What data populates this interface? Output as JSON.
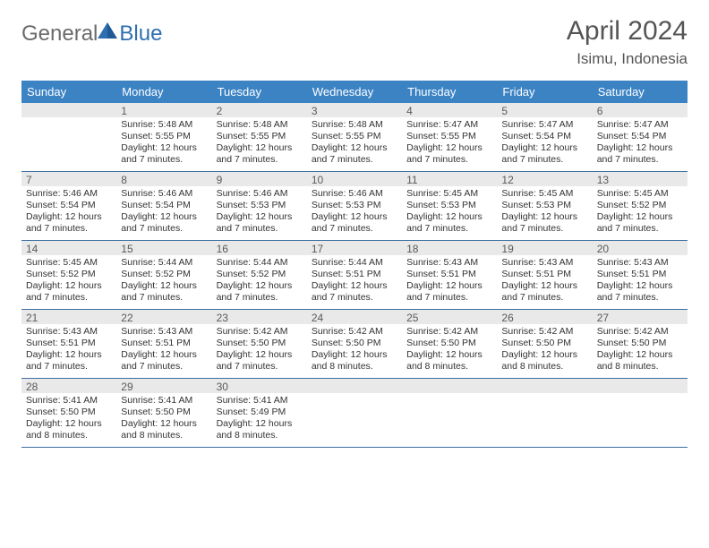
{
  "brand": {
    "part1": "General",
    "part2": "Blue"
  },
  "title": {
    "month": "April 2024",
    "location": "Isimu, Indonesia"
  },
  "colors": {
    "header_bg": "#3c83c4",
    "header_text": "#ffffff",
    "daynum_bg": "#e9e9e9",
    "daynum_text": "#5a5a5a",
    "body_text": "#333333",
    "rule": "#3c6ea0",
    "brand_gray": "#6b6b6b",
    "brand_blue": "#2f6fb0"
  },
  "typography": {
    "title_fontsize": 30,
    "location_fontsize": 17,
    "dow_fontsize": 13,
    "daynum_fontsize": 12,
    "body_fontsize": 10.5
  },
  "dow": [
    "Sunday",
    "Monday",
    "Tuesday",
    "Wednesday",
    "Thursday",
    "Friday",
    "Saturday"
  ],
  "weeks": [
    [
      {
        "n": "",
        "lines": []
      },
      {
        "n": "1",
        "lines": [
          "Sunrise: 5:48 AM",
          "Sunset: 5:55 PM",
          "Daylight: 12 hours and 7 minutes."
        ]
      },
      {
        "n": "2",
        "lines": [
          "Sunrise: 5:48 AM",
          "Sunset: 5:55 PM",
          "Daylight: 12 hours and 7 minutes."
        ]
      },
      {
        "n": "3",
        "lines": [
          "Sunrise: 5:48 AM",
          "Sunset: 5:55 PM",
          "Daylight: 12 hours and 7 minutes."
        ]
      },
      {
        "n": "4",
        "lines": [
          "Sunrise: 5:47 AM",
          "Sunset: 5:55 PM",
          "Daylight: 12 hours and 7 minutes."
        ]
      },
      {
        "n": "5",
        "lines": [
          "Sunrise: 5:47 AM",
          "Sunset: 5:54 PM",
          "Daylight: 12 hours and 7 minutes."
        ]
      },
      {
        "n": "6",
        "lines": [
          "Sunrise: 5:47 AM",
          "Sunset: 5:54 PM",
          "Daylight: 12 hours and 7 minutes."
        ]
      }
    ],
    [
      {
        "n": "7",
        "lines": [
          "Sunrise: 5:46 AM",
          "Sunset: 5:54 PM",
          "Daylight: 12 hours and 7 minutes."
        ]
      },
      {
        "n": "8",
        "lines": [
          "Sunrise: 5:46 AM",
          "Sunset: 5:54 PM",
          "Daylight: 12 hours and 7 minutes."
        ]
      },
      {
        "n": "9",
        "lines": [
          "Sunrise: 5:46 AM",
          "Sunset: 5:53 PM",
          "Daylight: 12 hours and 7 minutes."
        ]
      },
      {
        "n": "10",
        "lines": [
          "Sunrise: 5:46 AM",
          "Sunset: 5:53 PM",
          "Daylight: 12 hours and 7 minutes."
        ]
      },
      {
        "n": "11",
        "lines": [
          "Sunrise: 5:45 AM",
          "Sunset: 5:53 PM",
          "Daylight: 12 hours and 7 minutes."
        ]
      },
      {
        "n": "12",
        "lines": [
          "Sunrise: 5:45 AM",
          "Sunset: 5:53 PM",
          "Daylight: 12 hours and 7 minutes."
        ]
      },
      {
        "n": "13",
        "lines": [
          "Sunrise: 5:45 AM",
          "Sunset: 5:52 PM",
          "Daylight: 12 hours and 7 minutes."
        ]
      }
    ],
    [
      {
        "n": "14",
        "lines": [
          "Sunrise: 5:45 AM",
          "Sunset: 5:52 PM",
          "Daylight: 12 hours and 7 minutes."
        ]
      },
      {
        "n": "15",
        "lines": [
          "Sunrise: 5:44 AM",
          "Sunset: 5:52 PM",
          "Daylight: 12 hours and 7 minutes."
        ]
      },
      {
        "n": "16",
        "lines": [
          "Sunrise: 5:44 AM",
          "Sunset: 5:52 PM",
          "Daylight: 12 hours and 7 minutes."
        ]
      },
      {
        "n": "17",
        "lines": [
          "Sunrise: 5:44 AM",
          "Sunset: 5:51 PM",
          "Daylight: 12 hours and 7 minutes."
        ]
      },
      {
        "n": "18",
        "lines": [
          "Sunrise: 5:43 AM",
          "Sunset: 5:51 PM",
          "Daylight: 12 hours and 7 minutes."
        ]
      },
      {
        "n": "19",
        "lines": [
          "Sunrise: 5:43 AM",
          "Sunset: 5:51 PM",
          "Daylight: 12 hours and 7 minutes."
        ]
      },
      {
        "n": "20",
        "lines": [
          "Sunrise: 5:43 AM",
          "Sunset: 5:51 PM",
          "Daylight: 12 hours and 7 minutes."
        ]
      }
    ],
    [
      {
        "n": "21",
        "lines": [
          "Sunrise: 5:43 AM",
          "Sunset: 5:51 PM",
          "Daylight: 12 hours and 7 minutes."
        ]
      },
      {
        "n": "22",
        "lines": [
          "Sunrise: 5:43 AM",
          "Sunset: 5:51 PM",
          "Daylight: 12 hours and 7 minutes."
        ]
      },
      {
        "n": "23",
        "lines": [
          "Sunrise: 5:42 AM",
          "Sunset: 5:50 PM",
          "Daylight: 12 hours and 7 minutes."
        ]
      },
      {
        "n": "24",
        "lines": [
          "Sunrise: 5:42 AM",
          "Sunset: 5:50 PM",
          "Daylight: 12 hours and 8 minutes."
        ]
      },
      {
        "n": "25",
        "lines": [
          "Sunrise: 5:42 AM",
          "Sunset: 5:50 PM",
          "Daylight: 12 hours and 8 minutes."
        ]
      },
      {
        "n": "26",
        "lines": [
          "Sunrise: 5:42 AM",
          "Sunset: 5:50 PM",
          "Daylight: 12 hours and 8 minutes."
        ]
      },
      {
        "n": "27",
        "lines": [
          "Sunrise: 5:42 AM",
          "Sunset: 5:50 PM",
          "Daylight: 12 hours and 8 minutes."
        ]
      }
    ],
    [
      {
        "n": "28",
        "lines": [
          "Sunrise: 5:41 AM",
          "Sunset: 5:50 PM",
          "Daylight: 12 hours and 8 minutes."
        ]
      },
      {
        "n": "29",
        "lines": [
          "Sunrise: 5:41 AM",
          "Sunset: 5:50 PM",
          "Daylight: 12 hours and 8 minutes."
        ]
      },
      {
        "n": "30",
        "lines": [
          "Sunrise: 5:41 AM",
          "Sunset: 5:49 PM",
          "Daylight: 12 hours and 8 minutes."
        ]
      },
      {
        "n": "",
        "lines": []
      },
      {
        "n": "",
        "lines": []
      },
      {
        "n": "",
        "lines": []
      },
      {
        "n": "",
        "lines": []
      }
    ]
  ]
}
